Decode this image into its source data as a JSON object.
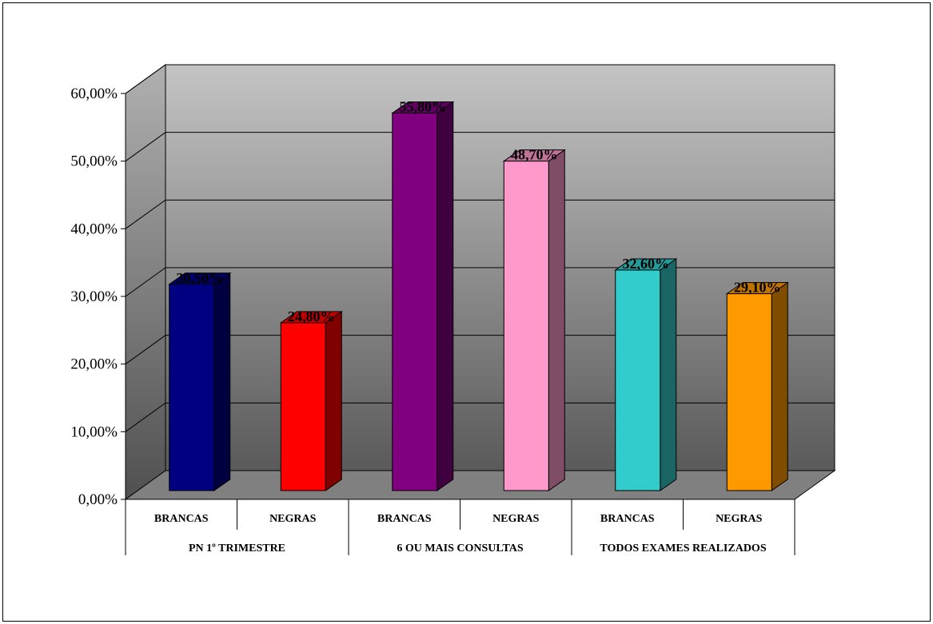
{
  "chart_data": {
    "type": "bar",
    "style": "3d",
    "groups": [
      "PN 1º TRIMESTRE",
      "6 OU MAIS CONSULTAS",
      "TODOS EXAMES REALIZADOS"
    ],
    "categories": [
      "BRANCAS",
      "NEGRAS",
      "BRANCAS",
      "NEGRAS",
      "BRANCAS",
      "NEGRAS"
    ],
    "values": [
      30.5,
      24.8,
      55.8,
      48.7,
      32.6,
      29.1
    ],
    "data_labels": [
      "30,50%",
      "24,80%",
      "55,80%",
      "48,70%",
      "32,60%",
      "29,10%"
    ],
    "colors": [
      "#000080",
      "#ff0000",
      "#800080",
      "#ff99cc",
      "#33cccc",
      "#ff9900"
    ],
    "y_ticks": [
      "0,00%",
      "10,00%",
      "20,00%",
      "30,00%",
      "40,00%",
      "50,00%",
      "60,00%"
    ],
    "ylim": [
      0,
      60
    ],
    "grid": true,
    "legend": "none"
  }
}
